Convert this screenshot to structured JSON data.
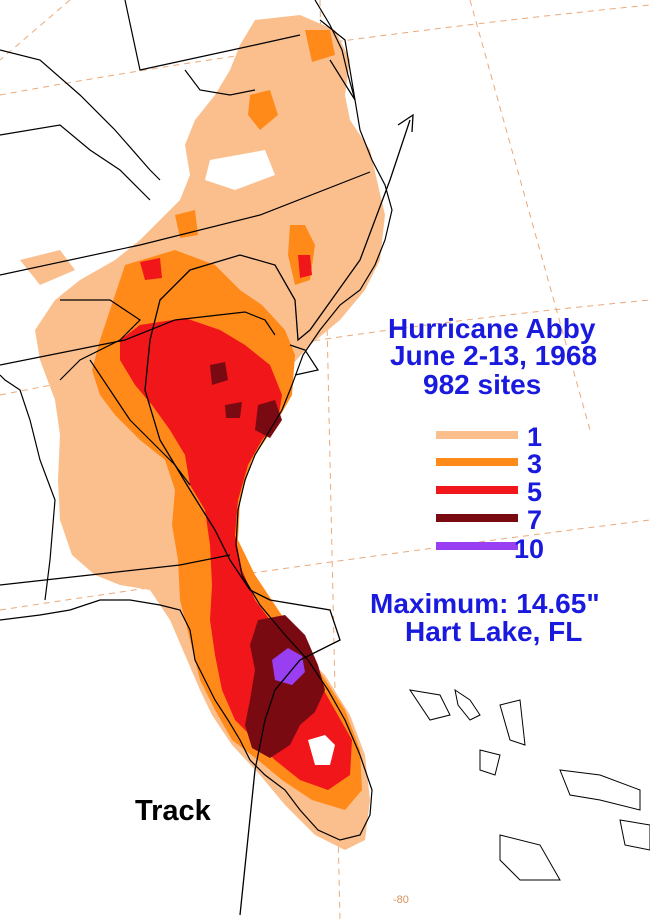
{
  "title": {
    "name": "Hurricane Abby",
    "dates": "June 2-13, 1968",
    "sites": "982 sites"
  },
  "legend": {
    "items": [
      {
        "label": "1",
        "color": "#fbbf8e"
      },
      {
        "label": "3",
        "color": "#ff8a1a"
      },
      {
        "label": "5",
        "color": "#f0161a"
      },
      {
        "label": "7",
        "color": "#7a0a12"
      },
      {
        "label": "10",
        "color": "#9a3ef2"
      }
    ]
  },
  "maximum": {
    "label": "Maximum:  14.65\"",
    "location": "Hart Lake, FL"
  },
  "track_label": "Track",
  "grid_tick": "-80",
  "colors": {
    "text": "#1a1adf",
    "grid": "#e9a97a",
    "outline": "#000000"
  }
}
